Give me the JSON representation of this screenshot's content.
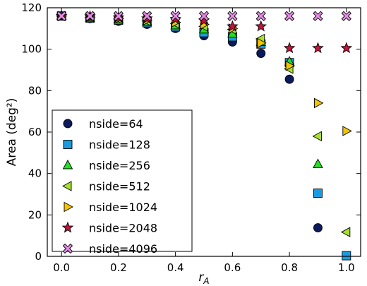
{
  "chart_data": {
    "type": "scatter",
    "xlabel": "r_A",
    "ylabel": "Area (deg²)",
    "xlim": [
      -0.05,
      1.05
    ],
    "ylim": [
      0,
      120
    ],
    "xticks": [
      "0.0",
      "0.2",
      "0.4",
      "0.6",
      "0.8",
      "1.0"
    ],
    "yticks": [
      "0",
      "20",
      "40",
      "60",
      "80",
      "100",
      "120"
    ],
    "grid": false,
    "legend": "bottom-left",
    "x": [
      0.0,
      0.1,
      0.2,
      0.3,
      0.4,
      0.5,
      0.6,
      0.7,
      0.8,
      0.9,
      1.0
    ],
    "series": [
      {
        "name": "nside=64",
        "marker": "circle",
        "color": "#0b1a5c",
        "values": [
          116.0,
          114.8,
          113.5,
          112.0,
          110.0,
          106.5,
          103.5,
          98.0,
          85.5,
          13.8,
          null
        ]
      },
      {
        "name": "nside=128",
        "marker": "square",
        "color": "#1a9be0",
        "values": [
          116.0,
          115.0,
          114.0,
          112.8,
          110.8,
          108.0,
          106.0,
          102.5,
          93.5,
          30.5,
          0.3
        ]
      },
      {
        "name": "nside=256",
        "marker": "triangle-up",
        "color": "#22e022",
        "values": [
          116.0,
          115.2,
          114.3,
          113.2,
          111.5,
          109.5,
          107.5,
          103.5,
          94.0,
          44.5,
          null
        ]
      },
      {
        "name": "nside=512",
        "marker": "triangle-left",
        "color": "#a8e030",
        "values": [
          116.0,
          115.4,
          114.6,
          113.6,
          112.4,
          111.0,
          109.5,
          105.0,
          90.5,
          58.0,
          11.7
        ]
      },
      {
        "name": "nside=1024",
        "marker": "triangle-right",
        "color": "#f5c400",
        "values": [
          116.0,
          115.5,
          114.8,
          114.0,
          113.0,
          112.0,
          110.0,
          103.0,
          92.0,
          74.0,
          60.5
        ]
      },
      {
        "name": "nside=2048",
        "marker": "star",
        "color": "#c4123a",
        "values": [
          116.0,
          115.8,
          115.3,
          114.8,
          114.5,
          113.8,
          111.0,
          111.0,
          100.5,
          100.5,
          100.5
        ]
      },
      {
        "name": "nside=4096",
        "marker": "x",
        "color": "#e58ae5",
        "values": [
          116.0,
          116.0,
          116.0,
          116.0,
          116.0,
          116.0,
          116.0,
          116.0,
          116.0,
          116.0,
          116.0
        ]
      }
    ]
  }
}
